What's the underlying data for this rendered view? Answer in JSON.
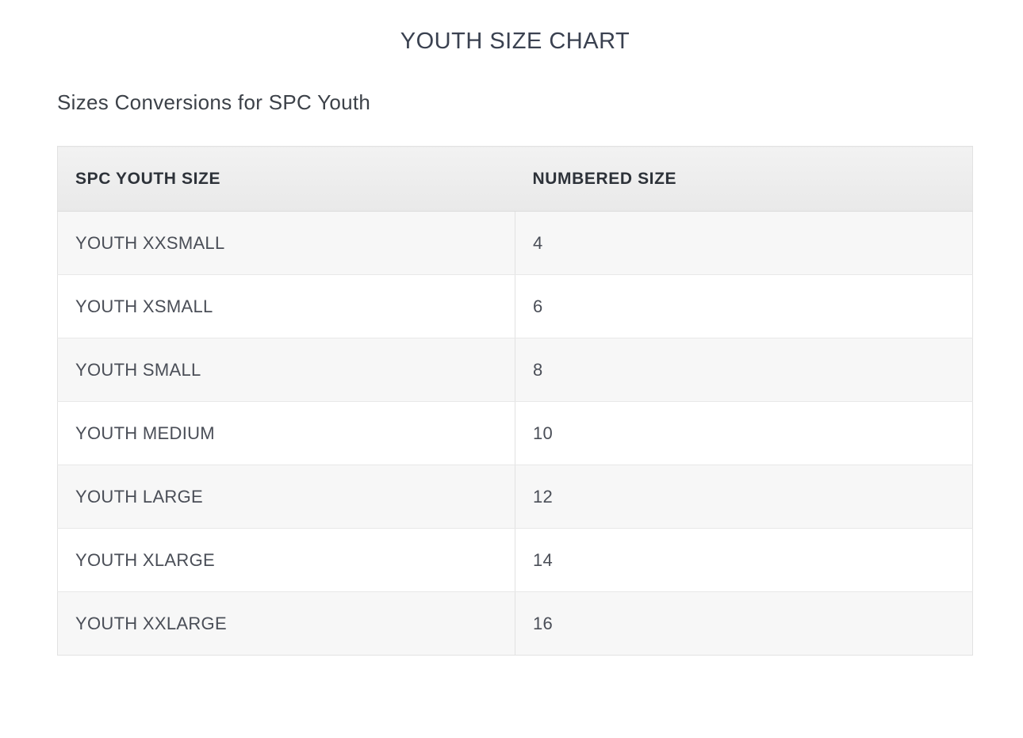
{
  "page": {
    "title": "YOUTH SIZE CHART",
    "subtitle": "Sizes Conversions for SPC Youth"
  },
  "table": {
    "columns": [
      "SPC YOUTH SIZE",
      "NUMBERED SIZE"
    ],
    "rows": [
      {
        "spc_youth_size": "YOUTH XXSMALL",
        "numbered_size": "4"
      },
      {
        "spc_youth_size": "YOUTH XSMALL",
        "numbered_size": "6"
      },
      {
        "spc_youth_size": "YOUTH SMALL",
        "numbered_size": "8"
      },
      {
        "spc_youth_size": "YOUTH MEDIUM",
        "numbered_size": "10"
      },
      {
        "spc_youth_size": "YOUTH LARGE",
        "numbered_size": "12"
      },
      {
        "spc_youth_size": "YOUTH XLARGE",
        "numbered_size": "14"
      },
      {
        "spc_youth_size": "YOUTH XXLARGE",
        "numbered_size": "16"
      }
    ]
  },
  "colors": {
    "title_text": "#3a4150",
    "subtitle_text": "#3c4148",
    "header_text": "#2d3239",
    "header_bg": "#efefef",
    "row_alt_bg": "#f7f7f7",
    "cell_text": "#4a4e57",
    "border": "#e2e2e2",
    "page_bg": "#ffffff"
  }
}
